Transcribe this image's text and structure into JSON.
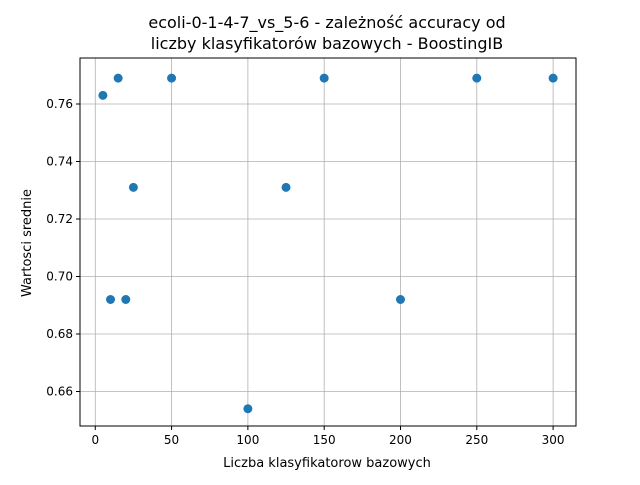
{
  "chart_data": {
    "type": "scatter",
    "title_lines": [
      "ecoli-0-1-4-7_vs_5-6 - zależność accuracy od",
      "liczby klasyfikatorów bazowych - BoostingIB"
    ],
    "xlabel": "Liczba klasyfikatorow bazowych",
    "ylabel": "Wartosci srednie",
    "xlim": [
      -10,
      315
    ],
    "ylim": [
      0.648,
      0.776
    ],
    "x_ticks": [
      0,
      50,
      100,
      150,
      200,
      250,
      300
    ],
    "x_tick_labels": [
      "0",
      "50",
      "100",
      "150",
      "200",
      "250",
      "300"
    ],
    "y_ticks": [
      0.66,
      0.68,
      0.7,
      0.72,
      0.74,
      0.76
    ],
    "y_tick_labels": [
      "0.66",
      "0.68",
      "0.70",
      "0.72",
      "0.74",
      "0.76"
    ],
    "grid": true,
    "marker_color": "#1f77b4",
    "points": [
      {
        "x": 5,
        "y": 0.763
      },
      {
        "x": 10,
        "y": 0.692
      },
      {
        "x": 15,
        "y": 0.769
      },
      {
        "x": 20,
        "y": 0.692
      },
      {
        "x": 25,
        "y": 0.731
      },
      {
        "x": 50,
        "y": 0.769
      },
      {
        "x": 100,
        "y": 0.654
      },
      {
        "x": 125,
        "y": 0.731
      },
      {
        "x": 150,
        "y": 0.769
      },
      {
        "x": 200,
        "y": 0.692
      },
      {
        "x": 250,
        "y": 0.769
      },
      {
        "x": 300,
        "y": 0.769
      }
    ]
  }
}
